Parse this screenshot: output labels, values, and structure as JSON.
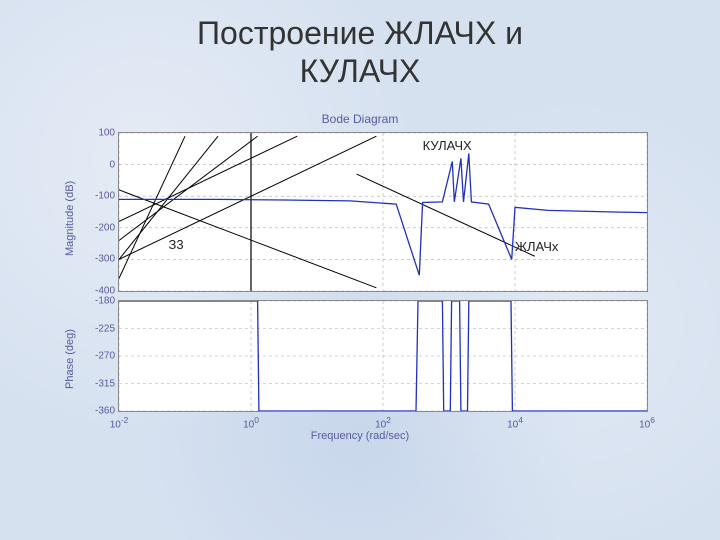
{
  "slide": {
    "title_line1": "Построение ЖЛАЧХ и",
    "title_line2": "КУЛАЧХ",
    "title_fontsize": 32,
    "background_color": "#d6e1f0"
  },
  "diagram": {
    "title": "Bode Diagram",
    "xlabel": "Frequency (rad/sec)",
    "x_log_min_exp": -2,
    "x_log_max_exp": 6,
    "x_tick_exps": [
      -2,
      0,
      2,
      4,
      6
    ],
    "panel_bg": "#ffffff",
    "grid_color": "#aaaaaa",
    "curve_color": "#2030c0",
    "asymptote_color": "#000000",
    "label_color": "#5a5aa0",
    "label_fontsize": 11,
    "tick_fontsize": 10
  },
  "magnitude": {
    "ylabel": "Magnitude (dB)",
    "ylim": [
      -400,
      100
    ],
    "ytick_step": 100,
    "yticks": [
      100,
      0,
      -100,
      -200,
      -300,
      -400
    ],
    "curve": [
      [
        -2,
        -110
      ],
      [
        -0.5,
        -110
      ],
      [
        0.5,
        -112
      ],
      [
        1.5,
        -115
      ],
      [
        2.2,
        -125
      ],
      [
        2.55,
        -350
      ],
      [
        2.6,
        -120
      ],
      [
        2.9,
        -118
      ],
      [
        3.05,
        10
      ],
      [
        3.08,
        -118
      ],
      [
        3.18,
        20
      ],
      [
        3.22,
        -118
      ],
      [
        3.3,
        35
      ],
      [
        3.34,
        -118
      ],
      [
        3.6,
        -125
      ],
      [
        3.95,
        -300
      ],
      [
        4.0,
        -135
      ],
      [
        4.5,
        -145
      ],
      [
        5.5,
        -150
      ],
      [
        6,
        -152
      ]
    ],
    "asymptote_lines": [
      {
        "p1": [
          -2,
          -300
        ],
        "p2": [
          1.9,
          90
        ]
      },
      {
        "p1": [
          -2,
          -80
        ],
        "p2": [
          1.9,
          -390
        ]
      },
      {
        "p1": [
          -2,
          -180
        ],
        "p2": [
          0.7,
          90
        ]
      },
      {
        "p1": [
          -2,
          -240
        ],
        "p2": [
          0.1,
          90
        ]
      },
      {
        "p1": [
          -2,
          -300
        ],
        "p2": [
          -0.5,
          90
        ]
      },
      {
        "p1": [
          -2,
          -360
        ],
        "p2": [
          -1.0,
          90
        ]
      },
      {
        "p1": [
          1.6,
          -30
        ],
        "p2": [
          4.3,
          -290
        ]
      }
    ],
    "vertical_marker_x_exp": 0,
    "annotations": [
      {
        "text": "КУЛАЧХ",
        "x_exp": 2.6,
        "y_dB": 60
      },
      {
        "text": "ЖЛАЧx",
        "x_exp": 4.0,
        "y_dB": -260
      },
      {
        "text": "З3",
        "x_exp": -1.25,
        "y_dB": -255
      }
    ]
  },
  "phase": {
    "ylabel": "Phase (deg)",
    "ylim": [
      -360,
      -180
    ],
    "yticks": [
      -180,
      -225,
      -270,
      -315,
      -360
    ],
    "curve": [
      [
        -2,
        -180
      ],
      [
        0.1,
        -180
      ],
      [
        0.12,
        -360
      ],
      [
        2.5,
        -360
      ],
      [
        2.53,
        -180
      ],
      [
        2.9,
        -180
      ],
      [
        2.92,
        -360
      ],
      [
        3.02,
        -360
      ],
      [
        3.04,
        -180
      ],
      [
        3.16,
        -180
      ],
      [
        3.18,
        -360
      ],
      [
        3.28,
        -360
      ],
      [
        3.3,
        -180
      ],
      [
        3.94,
        -180
      ],
      [
        3.96,
        -360
      ],
      [
        6,
        -360
      ]
    ]
  }
}
